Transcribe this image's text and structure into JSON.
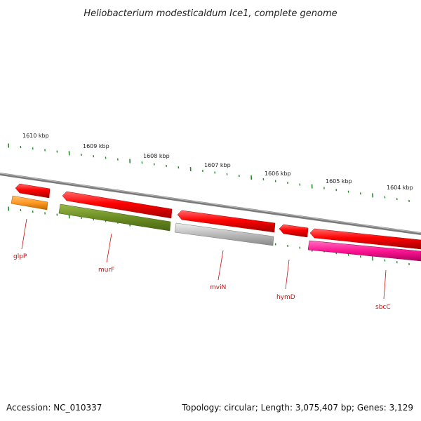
{
  "title": "Heliobacterium modesticaldum Ice1, complete genome",
  "accession": "Accession: NC_010337",
  "summary": "Topology: circular; Length: 3,075,407 bp; Genes: 3,129",
  "kbp_labels": [
    "1610 kbp",
    "1609 kbp",
    "1608 kbp",
    "1607 kbp",
    "1606 kbp",
    "1605 kbp",
    "1604 kbp"
  ],
  "genes": [
    {
      "name": "glpP",
      "strand": "reverse",
      "color": "#ff9922"
    },
    {
      "name": "murF",
      "strand": "reverse",
      "color": "#6b8e23"
    },
    {
      "name": "mviN",
      "strand": "reverse",
      "color": "#bbbbbb"
    },
    {
      "name": "hymD",
      "strand": "reverse",
      "color": "#ff0000"
    },
    {
      "name": "sbcC",
      "strand": "reverse",
      "color": "#ff1493"
    }
  ],
  "colors": {
    "cds": "#ff0000",
    "backbone": "#888888",
    "tick": "#228b22",
    "label": "#cc1111"
  }
}
